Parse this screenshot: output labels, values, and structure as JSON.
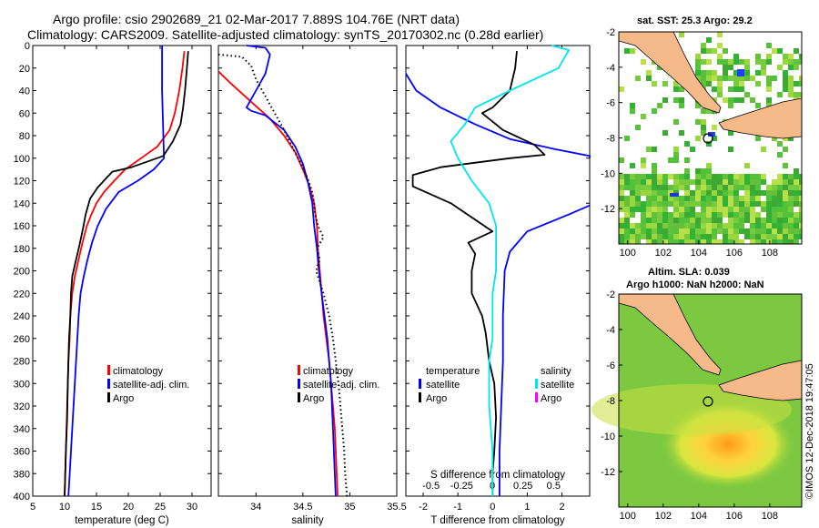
{
  "title": {
    "line1": "Argo profile: csio 2902689_21 02-Mar-2017 7.889S 104.76E (NRT data)",
    "line2": "Climatology: CARS2009. Satellite-adjusted climatology: synTS_20170302.nc (0.28d earlier)"
  },
  "depth_ticks": [
    "0",
    "20",
    "40",
    "60",
    "80",
    "100",
    "120",
    "140",
    "160",
    "180",
    "200",
    "220",
    "240",
    "260",
    "280",
    "300",
    "320",
    "340",
    "360",
    "380",
    "400"
  ],
  "colors": {
    "clim": "#ff0000",
    "sat": "#0000ff",
    "argo": "#000000",
    "cyan": "#00e5ee",
    "magenta": "#ff00ff",
    "land": "#f5b98a"
  },
  "right_panels": {
    "sst_title": "sat. SST: 25.3 Argo: 29.2",
    "sla_title1": "Altim. SLA: 0.039",
    "sla_title2": "Argo h1000: NaN h2000: NaN",
    "lat_ticks": [
      "-2",
      "-4",
      "-6",
      "-8",
      "-10",
      "-12"
    ],
    "lon_ticks": [
      "100",
      "102",
      "104",
      "106",
      "108"
    ],
    "credit": "©IMOS 12-Dec-2018 19:47:05"
  },
  "chart_data": [
    {
      "type": "line",
      "id": "temperature",
      "xlabel": "temperature (deg C)",
      "ylabel": "depth",
      "xlim": [
        5,
        33
      ],
      "ylim": [
        400,
        0
      ],
      "xticks": [
        "5",
        "10",
        "15",
        "20",
        "25",
        "30"
      ],
      "legend": [
        "climatology",
        "satellite-adj. clim.",
        "Argo"
      ],
      "series": [
        {
          "name": "climatology",
          "color": "#ff0000",
          "points": [
            [
              28.8,
              5
            ],
            [
              28.5,
              20
            ],
            [
              28.0,
              40
            ],
            [
              27.3,
              60
            ],
            [
              26.5,
              75
            ],
            [
              24.5,
              90
            ],
            [
              22,
              100
            ],
            [
              19.5,
              110
            ],
            [
              17.8,
              120
            ],
            [
              16.2,
              130
            ],
            [
              15,
              140
            ],
            [
              14.2,
              150
            ],
            [
              13.5,
              160
            ],
            [
              12.8,
              175
            ],
            [
              12.2,
              190
            ],
            [
              11.6,
              205
            ],
            [
              11.2,
              220
            ],
            [
              10.9,
              240
            ],
            [
              10.8,
              260
            ],
            [
              10.6,
              280
            ],
            [
              10.5,
              300
            ],
            [
              10.4,
              320
            ],
            [
              10.3,
              340
            ],
            [
              10.2,
              360
            ],
            [
              10.1,
              380
            ],
            [
              10.0,
              400
            ]
          ]
        },
        {
          "name": "satellite-adj. clim.",
          "color": "#0000ff",
          "points": [
            [
              25.3,
              0
            ],
            [
              25.3,
              20
            ],
            [
              25.3,
              40
            ],
            [
              25.4,
              60
            ],
            [
              25.5,
              80
            ],
            [
              25.6,
              100
            ],
            [
              24,
              110
            ],
            [
              21.5,
              120
            ],
            [
              18.5,
              130
            ],
            [
              16.5,
              145
            ],
            [
              15.2,
              160
            ],
            [
              14.3,
              175
            ],
            [
              13.6,
              190
            ],
            [
              13,
              205
            ],
            [
              12.5,
              220
            ],
            [
              12.2,
              240
            ],
            [
              12,
              260
            ],
            [
              11.8,
              280
            ],
            [
              11.6,
              300
            ],
            [
              11.4,
              320
            ],
            [
              11.2,
              340
            ],
            [
              11,
              360
            ],
            [
              10.8,
              380
            ],
            [
              10.6,
              400
            ]
          ]
        },
        {
          "name": "Argo",
          "color": "#000000",
          "points": [
            [
              29.4,
              5
            ],
            [
              29.2,
              20
            ],
            [
              28.9,
              40
            ],
            [
              28.6,
              55
            ],
            [
              28.2,
              70
            ],
            [
              27,
              85
            ],
            [
              25.5,
              98
            ],
            [
              20.5,
              108
            ],
            [
              17.5,
              112
            ],
            [
              16.5,
              118
            ],
            [
              15.2,
              126
            ],
            [
              14,
              136
            ],
            [
              13.3,
              150
            ],
            [
              12.9,
              162
            ],
            [
              12.3,
              178
            ],
            [
              11.6,
              195
            ],
            [
              11.2,
              205
            ],
            [
              11,
              220
            ],
            [
              10.9,
              240
            ],
            [
              10.7,
              260
            ],
            [
              10.6,
              280
            ],
            [
              10.5,
              300
            ],
            [
              10.4,
              330
            ],
            [
              10.2,
              360
            ],
            [
              10.1,
              380
            ],
            [
              10,
              400
            ]
          ]
        }
      ]
    },
    {
      "type": "line",
      "id": "salinity",
      "xlabel": "salinity",
      "ylabel": "depth",
      "xlim": [
        33.6,
        35.5
      ],
      "ylim": [
        400,
        0
      ],
      "xticks": [
        "34",
        "34.5",
        "35",
        "35.5"
      ],
      "legend": [
        "climatology",
        "satellite-adj. clim.",
        "Argo"
      ],
      "series": [
        {
          "name": "climatology",
          "color": "#ff0000",
          "points": [
            [
              33.6,
              23
            ],
            [
              33.75,
              35
            ],
            [
              33.95,
              50
            ],
            [
              34.15,
              65
            ],
            [
              34.3,
              80
            ],
            [
              34.42,
              95
            ],
            [
              34.5,
              110
            ],
            [
              34.57,
              125
            ],
            [
              34.62,
              140
            ],
            [
              34.65,
              160
            ],
            [
              34.66,
              180
            ],
            [
              34.68,
              200
            ],
            [
              34.7,
              220
            ],
            [
              34.72,
              240
            ],
            [
              34.75,
              260
            ],
            [
              34.78,
              280
            ],
            [
              34.8,
              300
            ],
            [
              34.82,
              320
            ],
            [
              34.84,
              340
            ],
            [
              34.85,
              360
            ],
            [
              34.86,
              380
            ],
            [
              34.87,
              400
            ]
          ]
        },
        {
          "name": "satellite-adj. clim.",
          "color": "#0000ff",
          "points": [
            [
              33.9,
              0
            ],
            [
              34.1,
              2
            ],
            [
              34.15,
              8
            ],
            [
              34.1,
              25
            ],
            [
              34.0,
              40
            ],
            [
              33.9,
              55
            ],
            [
              33.95,
              58
            ],
            [
              34.1,
              62
            ],
            [
              34.3,
              75
            ],
            [
              34.42,
              90
            ],
            [
              34.5,
              105
            ],
            [
              34.55,
              120
            ],
            [
              34.6,
              140
            ],
            [
              34.62,
              160
            ],
            [
              34.65,
              180
            ],
            [
              34.67,
              200
            ],
            [
              34.7,
              220
            ],
            [
              34.73,
              240
            ],
            [
              34.76,
              260
            ],
            [
              34.78,
              280
            ],
            [
              34.8,
              300
            ],
            [
              34.81,
              320
            ],
            [
              34.82,
              340
            ],
            [
              34.83,
              360
            ],
            [
              34.84,
              380
            ],
            [
              34.85,
              400
            ]
          ]
        },
        {
          "name": "Argo",
          "color": "#000000",
          "points": [
            [
              33.6,
              8
            ],
            [
              33.85,
              10
            ],
            [
              33.95,
              18
            ],
            [
              34.0,
              30
            ],
            [
              34.1,
              45
            ],
            [
              34.2,
              60
            ],
            [
              34.3,
              75
            ],
            [
              34.4,
              92
            ],
            [
              34.48,
              105
            ],
            [
              34.55,
              118
            ],
            [
              34.6,
              130
            ],
            [
              34.62,
              140
            ],
            [
              34.63,
              150
            ],
            [
              34.66,
              160
            ],
            [
              34.72,
              170
            ],
            [
              34.65,
              180
            ],
            [
              34.68,
              190
            ],
            [
              34.64,
              200
            ],
            [
              34.72,
              220
            ],
            [
              34.78,
              240
            ],
            [
              34.82,
              260
            ],
            [
              34.85,
              280
            ],
            [
              34.88,
              300
            ],
            [
              34.9,
              320
            ],
            [
              34.92,
              340
            ],
            [
              34.94,
              360
            ],
            [
              34.95,
              380
            ],
            [
              34.97,
              400
            ]
          ]
        }
      ]
    },
    {
      "type": "line",
      "id": "difference",
      "xlabel": "T difference from climatology",
      "x2label": "S difference from climatology",
      "ylabel": "depth",
      "xlim": [
        -2.5,
        2.8
      ],
      "ylim": [
        400,
        0
      ],
      "xticks": [
        "-2",
        "-1",
        "0",
        "1",
        "2"
      ],
      "x2ticks": [
        "-0.5",
        "-0.25",
        "0",
        "0.25",
        "0.5"
      ],
      "legend_temperature_title": "temperature",
      "legend_temperature": [
        "satellite",
        "Argo"
      ],
      "legend_salinity_title": "salinity",
      "legend_salinity": [
        "satellite",
        "Argo"
      ],
      "series": [
        {
          "name": "T satellite",
          "color": "#0000ff",
          "points": [
            [
              -2.5,
              25
            ],
            [
              -2.2,
              40
            ],
            [
              -1.5,
              55
            ],
            [
              -0.5,
              70
            ],
            [
              0.5,
              83
            ],
            [
              1.8,
              92
            ],
            [
              2.8,
              98
            ],
            [
              2.8,
              100
            ]
          ]
        },
        {
          "name": "T satellite deep",
          "color": "#0000ff",
          "points": [
            [
              2.8,
              142
            ],
            [
              2.2,
              150
            ],
            [
              1.0,
              165
            ],
            [
              0.5,
              183
            ],
            [
              0.35,
              200
            ],
            [
              0.3,
              240
            ],
            [
              0.3,
              280
            ],
            [
              0.25,
              320
            ],
            [
              0.2,
              360
            ],
            [
              0.2,
              400
            ]
          ]
        },
        {
          "name": "T Argo",
          "color": "#000000",
          "points": [
            [
              0.7,
              5
            ],
            [
              0.65,
              20
            ],
            [
              0.5,
              40
            ],
            [
              0.0,
              55
            ],
            [
              -0.3,
              60
            ],
            [
              0.3,
              75
            ],
            [
              1.2,
              88
            ],
            [
              1.5,
              97
            ],
            [
              0.5,
              100
            ],
            [
              -1.5,
              108
            ],
            [
              -2.3,
              115
            ],
            [
              -2.3,
              125
            ],
            [
              -1.2,
              140
            ],
            [
              0,
              165
            ],
            [
              -0.7,
              175
            ],
            [
              -0.5,
              185
            ],
            [
              -0.6,
              200
            ],
            [
              -0.6,
              220
            ],
            [
              -0.3,
              240
            ],
            [
              -0.2,
              255
            ],
            [
              -0.1,
              280
            ],
            [
              0.05,
              300
            ],
            [
              0.1,
              330
            ],
            [
              0.05,
              360
            ],
            [
              0.0,
              380
            ],
            [
              0.0,
              400
            ]
          ]
        },
        {
          "name": "S satellite",
          "color": "#00e5ee",
          "points": [
            [
              1.7,
              0
            ],
            [
              2.2,
              4
            ],
            [
              1.9,
              20
            ],
            [
              0.5,
              40
            ],
            [
              -0.5,
              55
            ],
            [
              -0.8,
              70
            ],
            [
              -1.2,
              85
            ],
            [
              -1.0,
              100
            ],
            [
              -0.6,
              120
            ],
            [
              -0.1,
              140
            ],
            [
              0.1,
              160
            ],
            [
              0.1,
              180
            ],
            [
              0.1,
              200
            ],
            [
              0.0,
              220
            ],
            [
              0.0,
              240
            ],
            [
              0.0,
              260
            ],
            [
              -0.1,
              280
            ],
            [
              -0.1,
              300
            ],
            [
              -0.1,
              320
            ],
            [
              -0.05,
              340
            ],
            [
              0.0,
              360
            ],
            [
              0.0,
              380
            ],
            [
              0.0,
              400
            ]
          ]
        }
      ]
    }
  ]
}
